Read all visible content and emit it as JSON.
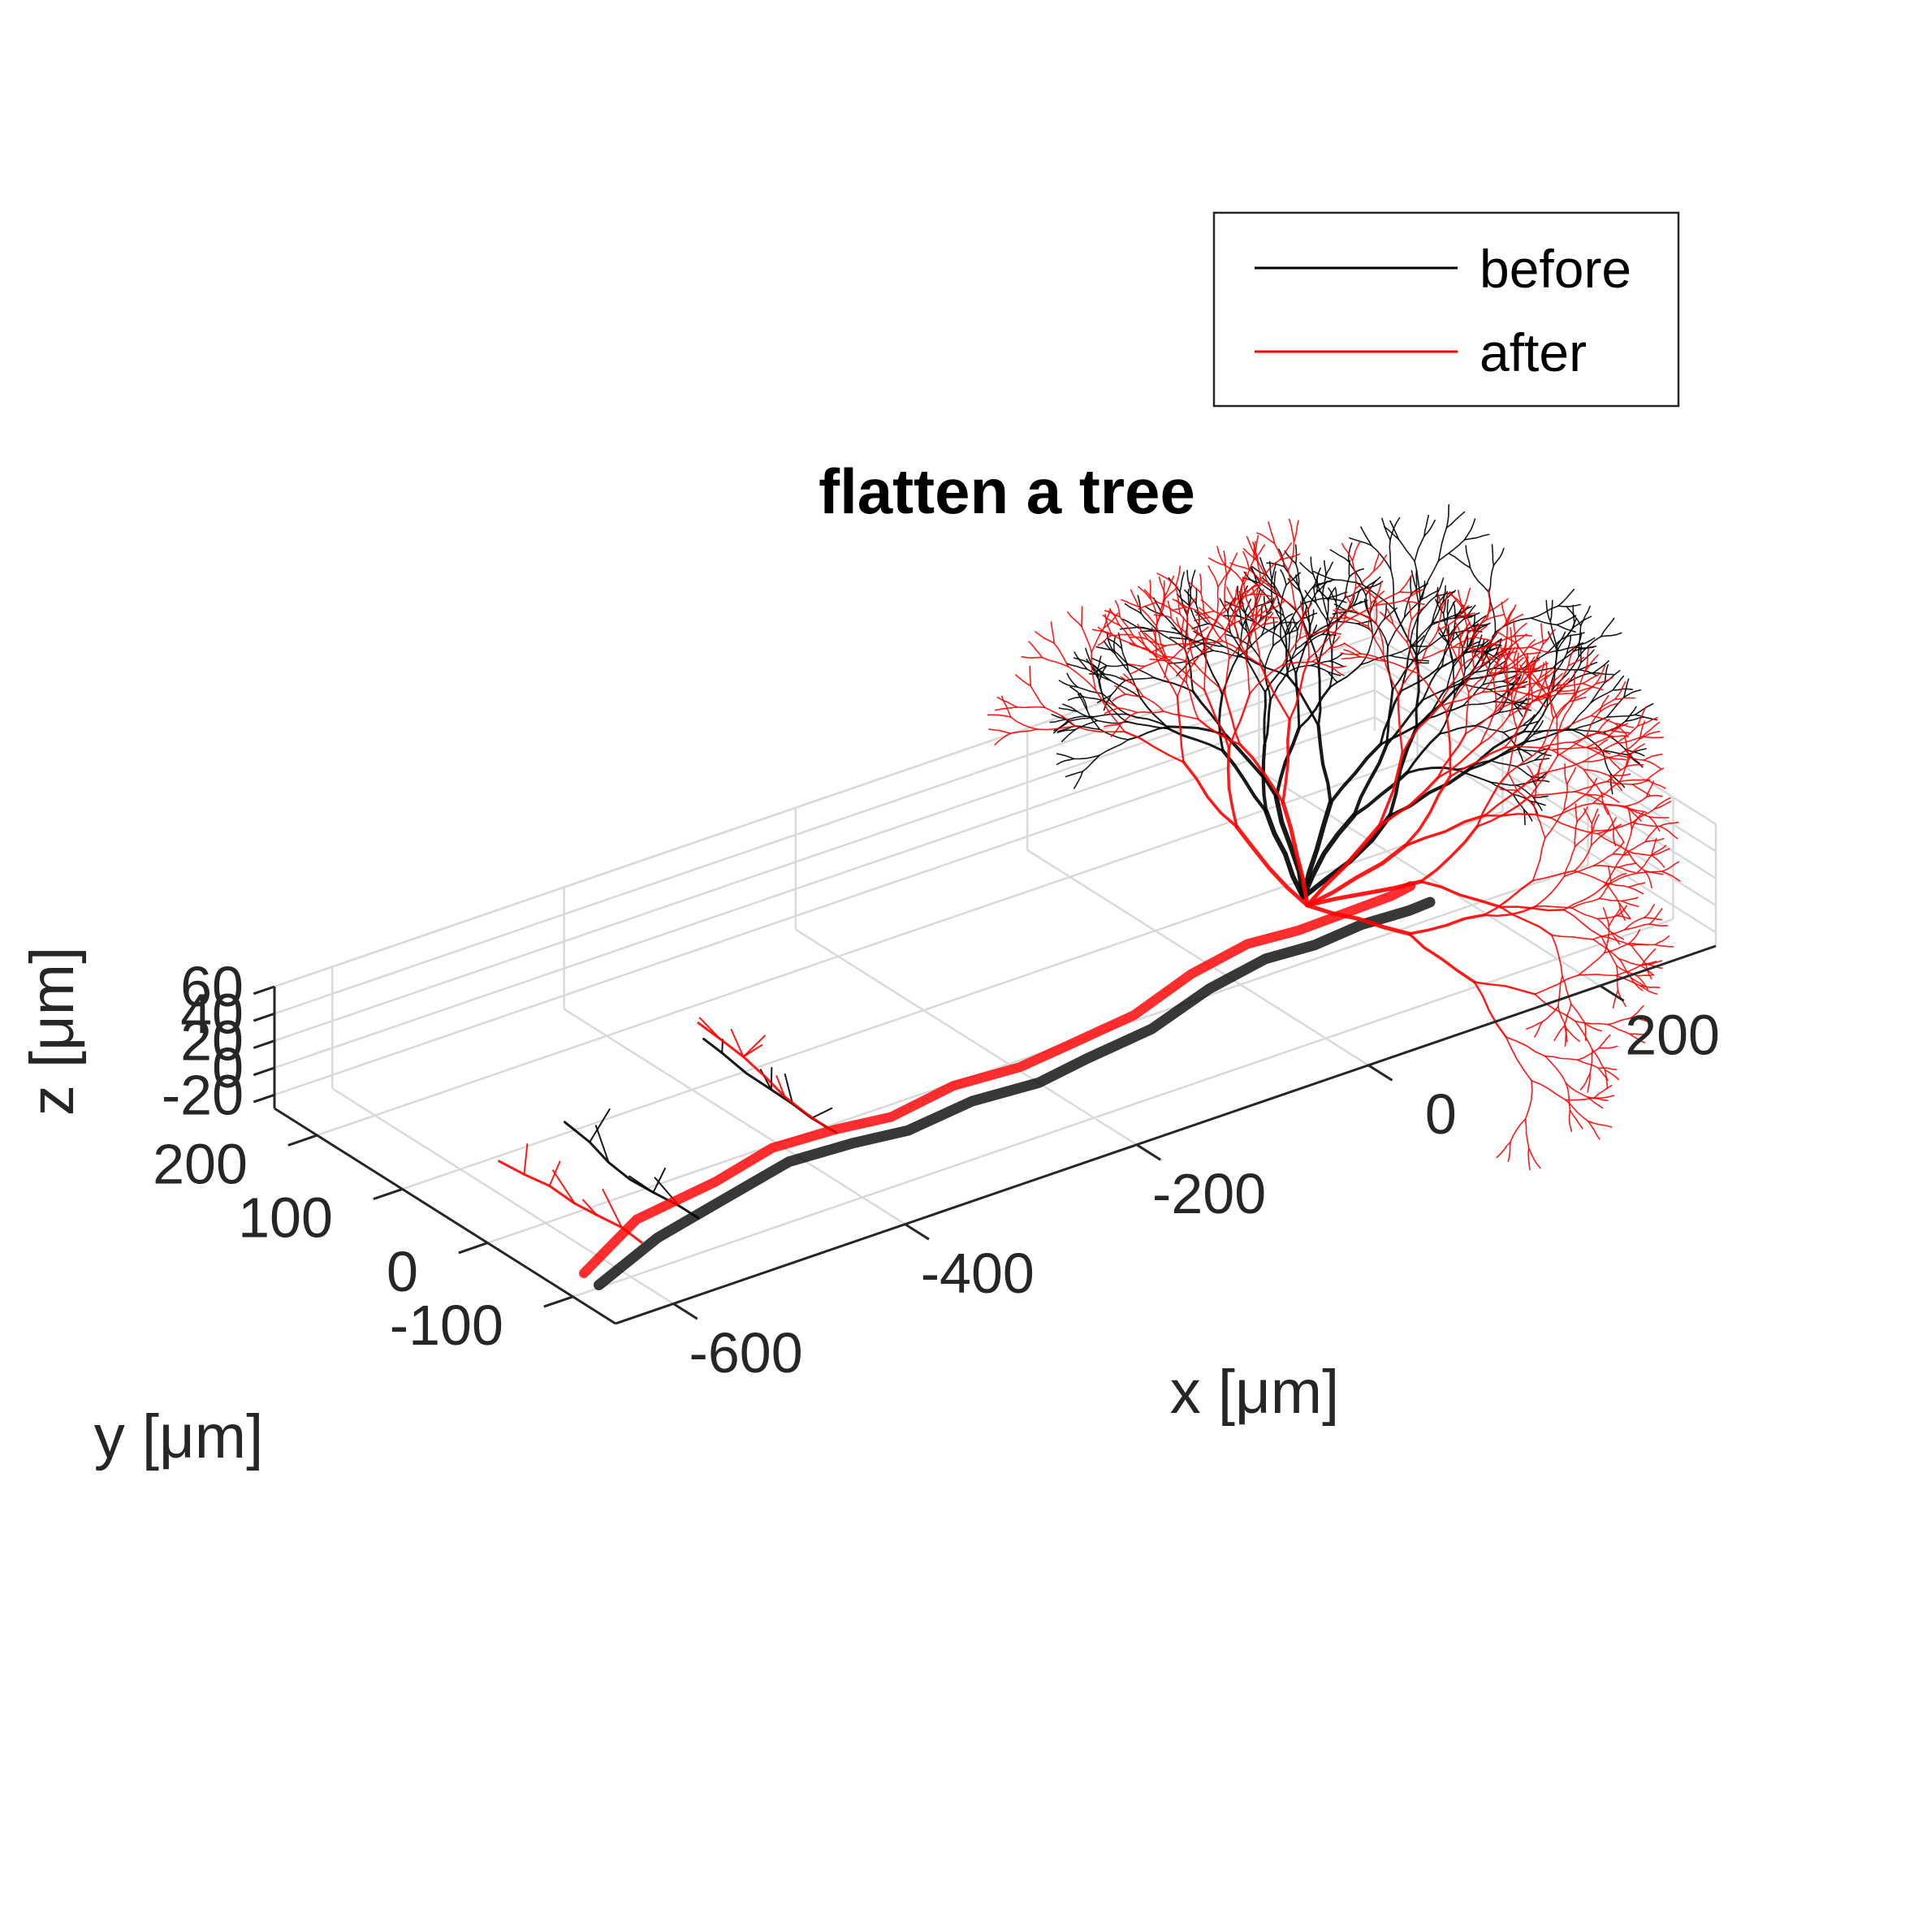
{
  "chart_data": {
    "type": "line",
    "title": "flatten a tree",
    "xlabel": "x [μm]",
    "ylabel": "y [μm]",
    "zlabel": "z [μm]",
    "x_ticks": [
      "-600",
      "-400",
      "-200",
      "0",
      "200"
    ],
    "y_ticks": [
      "-100",
      "0",
      "100",
      "200"
    ],
    "z_ticks": [
      "-20",
      "0",
      "20",
      "40",
      "60"
    ],
    "xlim": [
      -650,
      300
    ],
    "ylim": [
      -150,
      250
    ],
    "zlim": [
      -30,
      60
    ],
    "grid": true,
    "view": "3d",
    "legend_position": "top-right",
    "series": [
      {
        "name": "before",
        "color": "#000000"
      },
      {
        "name": "after",
        "color": "#ff0000"
      }
    ]
  }
}
